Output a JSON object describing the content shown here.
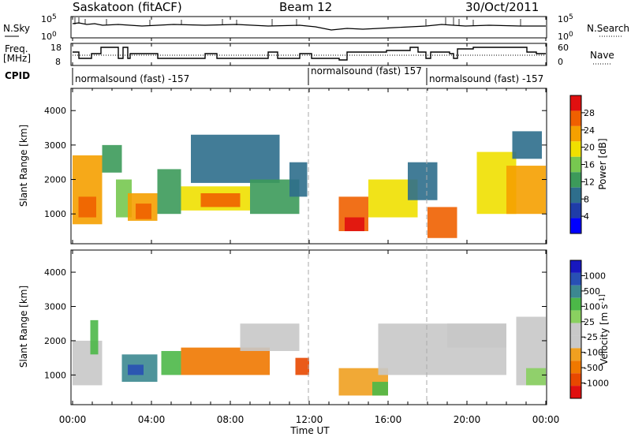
{
  "header": {
    "station": "Saskatoon (fitACF)",
    "beam": "Beam 12",
    "date": "30/Oct/2011"
  },
  "noise_panel": {
    "left_label": "N.Sky",
    "left_ticks": [
      "10^5",
      "10^0"
    ],
    "right_label": "N.Search",
    "right_ticks": [
      "10^5",
      "10^0"
    ]
  },
  "freq_panel": {
    "left_label_1": "Freq.",
    "left_label_2": "[MHz]",
    "left_ticks": [
      "18",
      "8"
    ],
    "right_label": "Nave",
    "right_ticks": [
      "60",
      "0"
    ]
  },
  "cpid": {
    "label": "CPID",
    "segments": [
      {
        "start_hour": 0,
        "text": "normalsound (fast) -157"
      },
      {
        "start_hour": 12,
        "text": "normalsound (fast) 157"
      },
      {
        "start_hour": 18,
        "text": "normalsound (fast) -157"
      }
    ]
  },
  "palettes": {
    "power": [
      "#0000ff",
      "#1f3ca8",
      "#2e6e8c",
      "#3c9a5a",
      "#77c850",
      "#f0e000",
      "#f5a000",
      "#f06000",
      "#e01010"
    ],
    "velocity": [
      "#1818c0",
      "#2850b4",
      "#3c8890",
      "#4cb848",
      "#8ad060",
      "#c8c8c8",
      "#c8c8c8",
      "#f0a020",
      "#f07800",
      "#e84800",
      "#e01010"
    ]
  },
  "chart_data": [
    {
      "type": "heatmap",
      "name": "Power",
      "ylabel": "Slant Range [km]",
      "y_ticks": [
        1000,
        2000,
        3000,
        4000
      ],
      "ylim": [
        180,
        4600
      ],
      "xlim_hours": [
        0,
        24
      ],
      "colorbar": {
        "label": "Power [dB]",
        "ticks": [
          "4",
          "8",
          "12",
          "16",
          "20",
          "24",
          "28"
        ],
        "range": [
          0,
          32
        ]
      },
      "cells": [
        {
          "t": [
            0.0,
            1.5
          ],
          "r": [
            700,
            2700
          ],
          "v": 22
        },
        {
          "t": [
            0.3,
            1.2
          ],
          "r": [
            900,
            1500
          ],
          "v": 28
        },
        {
          "t": [
            1.5,
            2.5
          ],
          "r": [
            2200,
            3000
          ],
          "v": 12
        },
        {
          "t": [
            2.2,
            3.0
          ],
          "r": [
            900,
            2000
          ],
          "v": 16
        },
        {
          "t": [
            2.8,
            4.3
          ],
          "r": [
            800,
            1600
          ],
          "v": 24
        },
        {
          "t": [
            3.2,
            4.0
          ],
          "r": [
            850,
            1300
          ],
          "v": 28
        },
        {
          "t": [
            4.3,
            5.5
          ],
          "r": [
            1000,
            2300
          ],
          "v": 12
        },
        {
          "t": [
            5.5,
            9.0
          ],
          "r": [
            1100,
            1800
          ],
          "v": 20
        },
        {
          "t": [
            6.5,
            8.5
          ],
          "r": [
            1200,
            1600
          ],
          "v": 26
        },
        {
          "t": [
            6.0,
            10.5
          ],
          "r": [
            1900,
            3300
          ],
          "v": 8
        },
        {
          "t": [
            9.0,
            11.5
          ],
          "r": [
            1000,
            2000
          ],
          "v": 14
        },
        {
          "t": [
            11.0,
            11.9
          ],
          "r": [
            1500,
            2500
          ],
          "v": 10
        },
        {
          "t": [
            13.5,
            15.0
          ],
          "r": [
            500,
            1500
          ],
          "v": 26
        },
        {
          "t": [
            13.8,
            14.8
          ],
          "r": [
            500,
            900
          ],
          "v": 30
        },
        {
          "t": [
            15.0,
            17.5
          ],
          "r": [
            900,
            2000
          ],
          "v": 18
        },
        {
          "t": [
            17.0,
            18.5
          ],
          "r": [
            1400,
            2500
          ],
          "v": 10
        },
        {
          "t": [
            18.0,
            19.5
          ],
          "r": [
            300,
            1200
          ],
          "v": 26
        },
        {
          "t": [
            20.5,
            22.5
          ],
          "r": [
            1000,
            2800
          ],
          "v": 18
        },
        {
          "t": [
            22.0,
            24.0
          ],
          "r": [
            1000,
            2400
          ],
          "v": 24
        },
        {
          "t": [
            22.3,
            23.8
          ],
          "r": [
            2600,
            3400
          ],
          "v": 10
        }
      ]
    },
    {
      "type": "heatmap",
      "name": "Velocity",
      "ylabel": "Slant Range [km]",
      "y_ticks": [
        1000,
        2000,
        3000,
        4000
      ],
      "ylim": [
        180,
        4600
      ],
      "xlim_hours": [
        0,
        24
      ],
      "colorbar": {
        "label": "Velocity [m s^-1]",
        "ticks": [
          "1000",
          "500",
          "100",
          "25",
          "-25",
          "-100",
          "-500",
          "-1000"
        ]
      },
      "cells": [
        {
          "t": [
            0.0,
            1.5
          ],
          "r": [
            700,
            2000
          ],
          "c": 5
        },
        {
          "t": [
            0.9,
            1.3
          ],
          "r": [
            1600,
            2600
          ],
          "c": 3
        },
        {
          "t": [
            2.5,
            4.3
          ],
          "r": [
            800,
            1600
          ],
          "c": 2
        },
        {
          "t": [
            2.8,
            3.6
          ],
          "r": [
            1000,
            1300
          ],
          "c": 1
        },
        {
          "t": [
            4.5,
            5.5
          ],
          "r": [
            1000,
            1700
          ],
          "c": 3
        },
        {
          "t": [
            5.5,
            10.0
          ],
          "r": [
            1000,
            1800
          ],
          "c": 8
        },
        {
          "t": [
            8.5,
            11.5
          ],
          "r": [
            1700,
            2500
          ],
          "c": 5
        },
        {
          "t": [
            11.3,
            12.0
          ],
          "r": [
            1000,
            1500
          ],
          "c": 9
        },
        {
          "t": [
            13.5,
            16.0
          ],
          "r": [
            400,
            1200
          ],
          "c": 7
        },
        {
          "t": [
            15.2,
            16.0
          ],
          "r": [
            400,
            800
          ],
          "c": 3
        },
        {
          "t": [
            15.5,
            22.0
          ],
          "r": [
            1000,
            2500
          ],
          "c": 5
        },
        {
          "t": [
            19.0,
            22.0
          ],
          "r": [
            1800,
            2500
          ],
          "c": 5
        },
        {
          "t": [
            22.5,
            24.0
          ],
          "r": [
            700,
            2700
          ],
          "c": 5
        },
        {
          "t": [
            23.0,
            24.0
          ],
          "r": [
            700,
            1200
          ],
          "c": 4
        }
      ]
    }
  ],
  "time_axis": {
    "ticks": [
      "00:00",
      "04:00",
      "08:00",
      "12:00",
      "16:00",
      "20:00",
      "00:00"
    ],
    "label": "Time UT"
  }
}
